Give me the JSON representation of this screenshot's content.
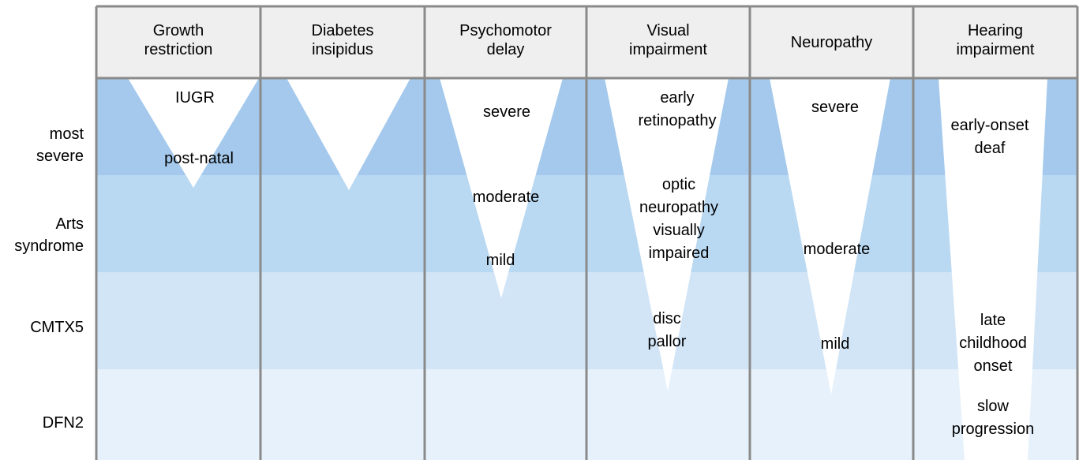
{
  "columns": [
    {
      "key": "growth",
      "header": [
        "Growth",
        "restriction"
      ]
    },
    {
      "key": "diabetes",
      "header": [
        "Diabetes",
        "insipidus"
      ]
    },
    {
      "key": "psychomotor",
      "header": [
        "Psychomotor",
        "delay"
      ]
    },
    {
      "key": "visual",
      "header": [
        "Visual",
        "impairment"
      ]
    },
    {
      "key": "neuropathy",
      "header": [
        "Neuropathy"
      ]
    },
    {
      "key": "hearing",
      "header": [
        "Hearing",
        "impairment"
      ]
    }
  ],
  "rows": [
    {
      "key": "most-severe",
      "label": [
        "most",
        "severe"
      ]
    },
    {
      "key": "arts-syndrome",
      "label": [
        "Arts",
        "syndrome"
      ]
    },
    {
      "key": "cmtx5",
      "label": [
        "CMTX5"
      ]
    },
    {
      "key": "dfn2",
      "label": [
        "DFN2"
      ]
    }
  ],
  "annotations": {
    "growth": [
      [
        "IUGR"
      ],
      [
        "post-natal"
      ]
    ],
    "diabetes": [],
    "psychomotor": [
      [
        "severe"
      ],
      [
        "moderate"
      ],
      [
        "mild"
      ]
    ],
    "visual": [
      [
        "early",
        "retinopathy"
      ],
      [
        "optic",
        "neuropathy",
        "visually",
        "impaired"
      ],
      [
        "disc",
        "pallor"
      ]
    ],
    "neuropathy": [
      [
        "severe"
      ],
      [
        "moderate"
      ],
      [
        "mild"
      ]
    ],
    "hearing": [
      [
        "early-onset",
        "deaf"
      ],
      [
        "late",
        "childhood",
        "onset"
      ],
      [
        "slow",
        "progression"
      ]
    ]
  },
  "colors": {
    "header_bg": "#efefef",
    "grid_line": "#8a8a8a",
    "band_most_severe": "#a4c9ec",
    "band_arts_syndrome": "#b9d8f2",
    "band_cmtx5": "#d2e5f7",
    "band_dfn2": "#e6f1fb",
    "wedge": "#ffffff"
  }
}
